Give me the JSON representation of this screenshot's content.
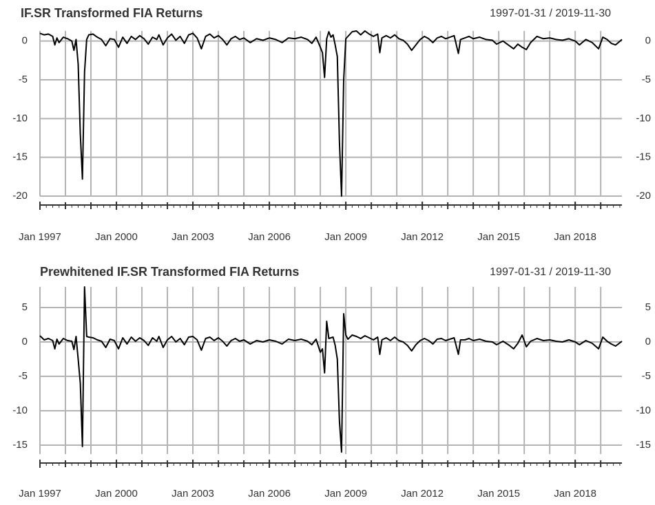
{
  "chart_data": [
    {
      "type": "line",
      "title": "IF.SR Transformed FIA Returns",
      "subtitle": "1997-01-31 / 2019-11-30",
      "x": [
        "1997-01",
        "1997-03",
        "1997-05",
        "1997-07",
        "1997-08",
        "1997-09",
        "1997-10",
        "1997-12",
        "1998-02",
        "1998-04",
        "1998-05",
        "1998-06",
        "1998-07",
        "1998-08",
        "1998-09",
        "1998-10",
        "1998-11",
        "1998-12",
        "1999-02",
        "1999-04",
        "1999-06",
        "1999-08",
        "1999-10",
        "1999-12",
        "2000-02",
        "2000-04",
        "2000-06",
        "2000-08",
        "2000-10",
        "2000-12",
        "2001-02",
        "2001-04",
        "2001-06",
        "2001-08",
        "2001-09",
        "2001-11",
        "2002-01",
        "2002-03",
        "2002-05",
        "2002-07",
        "2002-09",
        "2002-11",
        "2003-01",
        "2003-03",
        "2003-05",
        "2003-07",
        "2003-09",
        "2003-11",
        "2004-01",
        "2004-03",
        "2004-05",
        "2004-07",
        "2004-09",
        "2004-11",
        "2005-01",
        "2005-04",
        "2005-07",
        "2005-10",
        "2006-01",
        "2006-04",
        "2006-07",
        "2006-10",
        "2007-01",
        "2007-04",
        "2007-07",
        "2007-09",
        "2007-11",
        "2008-01",
        "2008-02",
        "2008-03",
        "2008-04",
        "2008-05",
        "2008-06",
        "2008-07",
        "2008-08",
        "2008-09",
        "2008-10",
        "2008-11",
        "2008-12",
        "2009-01",
        "2009-02",
        "2009-04",
        "2009-06",
        "2009-08",
        "2009-10",
        "2009-12",
        "2010-02",
        "2010-04",
        "2010-05",
        "2010-06",
        "2010-08",
        "2010-10",
        "2010-12",
        "2011-02",
        "2011-04",
        "2011-06",
        "2011-08",
        "2011-10",
        "2011-12",
        "2012-02",
        "2012-04",
        "2012-06",
        "2012-08",
        "2012-10",
        "2012-12",
        "2013-02",
        "2013-04",
        "2013-06",
        "2013-07",
        "2013-09",
        "2013-11",
        "2014-01",
        "2014-04",
        "2014-07",
        "2014-10",
        "2014-12",
        "2015-03",
        "2015-06",
        "2015-08",
        "2015-10",
        "2015-12",
        "2016-02",
        "2016-04",
        "2016-07",
        "2016-10",
        "2017-01",
        "2017-04",
        "2017-07",
        "2017-10",
        "2018-01",
        "2018-03",
        "2018-06",
        "2018-09",
        "2018-12",
        "2019-02",
        "2019-04",
        "2019-06",
        "2019-08",
        "2019-11"
      ],
      "values": [
        1.0,
        0.8,
        0.9,
        0.6,
        -0.5,
        0.4,
        -0.2,
        0.5,
        0.3,
        0.0,
        -1.2,
        0.2,
        -3.0,
        -12.0,
        -17.8,
        -4.0,
        0.2,
        0.8,
        0.9,
        0.5,
        0.2,
        -0.6,
        0.3,
        0.2,
        -0.8,
        0.5,
        -0.3,
        0.6,
        0.2,
        0.7,
        0.3,
        -0.4,
        0.5,
        0.2,
        0.8,
        -0.5,
        0.4,
        0.9,
        0.1,
        0.6,
        -0.3,
        0.8,
        1.0,
        0.4,
        -1.0,
        0.6,
        0.9,
        0.4,
        0.7,
        0.2,
        -0.5,
        0.3,
        0.6,
        0.2,
        0.4,
        -0.2,
        0.3,
        0.1,
        0.4,
        0.2,
        -0.2,
        0.4,
        0.3,
        0.5,
        0.2,
        -0.3,
        0.5,
        -0.8,
        -1.5,
        -4.7,
        0.3,
        1.2,
        0.5,
        0.8,
        -0.5,
        -2.0,
        -13.0,
        -20.0,
        -5.0,
        0.3,
        0.6,
        1.2,
        1.3,
        0.8,
        1.3,
        0.9,
        0.6,
        0.9,
        -1.5,
        0.4,
        0.7,
        0.4,
        0.8,
        0.3,
        0.1,
        -0.4,
        -1.2,
        -0.5,
        0.2,
        0.6,
        0.3,
        -0.2,
        0.4,
        0.6,
        0.3,
        0.5,
        0.7,
        -1.6,
        0.2,
        0.4,
        0.6,
        0.3,
        0.5,
        0.2,
        0.1,
        -0.4,
        0.0,
        -0.6,
        -1.0,
        -0.4,
        -0.8,
        -1.1,
        -0.2,
        0.6,
        0.3,
        0.4,
        0.2,
        0.1,
        0.3,
        0.0,
        -0.5,
        0.2,
        -0.2,
        -1.0,
        0.5,
        0.2,
        -0.3,
        -0.5,
        0.2
      ],
      "color": "#000000",
      "xlim": [
        "1997-01",
        "2019-11"
      ],
      "xticks": [
        {
          "value": "1997-01",
          "label": "Jan 1997"
        },
        {
          "value": "2000-01",
          "label": "Jan 2000"
        },
        {
          "value": "2003-01",
          "label": "Jan 2003"
        },
        {
          "value": "2006-01",
          "label": "Jan 2006"
        },
        {
          "value": "2009-01",
          "label": "Jan 2009"
        },
        {
          "value": "2012-01",
          "label": "Jan 2012"
        },
        {
          "value": "2015-01",
          "label": "Jan 2015"
        },
        {
          "value": "2018-01",
          "label": "Jan 2018"
        }
      ],
      "ylim": [
        -20,
        1.3
      ],
      "yticks": [
        0,
        -5,
        -10,
        -15,
        -20
      ],
      "grid": true
    },
    {
      "type": "line",
      "title": "Prewhitened IF.SR Transformed FIA Returns",
      "subtitle": "1997-01-31 / 2019-11-30",
      "x": [
        "1997-01",
        "1997-03",
        "1997-05",
        "1997-07",
        "1997-08",
        "1997-09",
        "1997-10",
        "1997-12",
        "1998-02",
        "1998-04",
        "1998-05",
        "1998-06",
        "1998-07",
        "1998-08",
        "1998-09",
        "1998-10",
        "1998-11",
        "1998-12",
        "1999-02",
        "1999-04",
        "1999-06",
        "1999-08",
        "1999-10",
        "1999-12",
        "2000-02",
        "2000-04",
        "2000-06",
        "2000-08",
        "2000-10",
        "2000-12",
        "2001-02",
        "2001-04",
        "2001-06",
        "2001-08",
        "2001-09",
        "2001-11",
        "2002-01",
        "2002-03",
        "2002-05",
        "2002-07",
        "2002-09",
        "2002-11",
        "2003-01",
        "2003-03",
        "2003-05",
        "2003-07",
        "2003-09",
        "2003-11",
        "2004-01",
        "2004-03",
        "2004-05",
        "2004-07",
        "2004-09",
        "2004-11",
        "2005-01",
        "2005-04",
        "2005-07",
        "2005-10",
        "2006-01",
        "2006-04",
        "2006-07",
        "2006-10",
        "2007-01",
        "2007-04",
        "2007-07",
        "2007-09",
        "2007-11",
        "2008-01",
        "2008-02",
        "2008-03",
        "2008-04",
        "2008-05",
        "2008-06",
        "2008-07",
        "2008-08",
        "2008-09",
        "2008-10",
        "2008-11",
        "2008-12",
        "2009-01",
        "2009-02",
        "2009-04",
        "2009-06",
        "2009-08",
        "2009-10",
        "2009-12",
        "2010-02",
        "2010-04",
        "2010-05",
        "2010-06",
        "2010-08",
        "2010-10",
        "2010-12",
        "2011-02",
        "2011-04",
        "2011-06",
        "2011-08",
        "2011-10",
        "2011-12",
        "2012-02",
        "2012-04",
        "2012-06",
        "2012-08",
        "2012-10",
        "2012-12",
        "2013-02",
        "2013-04",
        "2013-06",
        "2013-07",
        "2013-09",
        "2013-11",
        "2014-01",
        "2014-04",
        "2014-07",
        "2014-10",
        "2014-12",
        "2015-03",
        "2015-06",
        "2015-08",
        "2015-10",
        "2015-12",
        "2016-02",
        "2016-04",
        "2016-07",
        "2016-10",
        "2017-01",
        "2017-04",
        "2017-07",
        "2017-10",
        "2018-01",
        "2018-03",
        "2018-06",
        "2018-09",
        "2018-12",
        "2019-02",
        "2019-04",
        "2019-06",
        "2019-08",
        "2019-11"
      ],
      "values": [
        0.9,
        0.3,
        0.5,
        0.2,
        -1.0,
        0.4,
        -0.3,
        0.5,
        0.2,
        0.1,
        -1.1,
        0.8,
        -2.5,
        -6.0,
        -15.2,
        8.0,
        0.8,
        0.7,
        0.6,
        0.3,
        0.1,
        -0.8,
        0.4,
        0.2,
        -1.0,
        0.6,
        -0.3,
        0.7,
        0.1,
        0.6,
        0.2,
        -0.5,
        0.6,
        0.1,
        0.8,
        -0.8,
        0.3,
        0.8,
        0.0,
        0.5,
        -0.4,
        0.7,
        0.8,
        0.3,
        -1.2,
        0.5,
        0.7,
        0.2,
        0.6,
        0.1,
        -0.6,
        0.2,
        0.5,
        0.1,
        0.3,
        -0.3,
        0.2,
        0.0,
        0.3,
        0.1,
        -0.3,
        0.4,
        0.2,
        0.4,
        0.1,
        -0.4,
        0.4,
        -1.5,
        -1.0,
        -4.5,
        3.0,
        0.5,
        0.6,
        0.7,
        -0.5,
        -2.5,
        -11.5,
        -16.0,
        4.1,
        1.0,
        0.4,
        1.0,
        0.8,
        0.5,
        0.9,
        0.6,
        0.3,
        0.7,
        -1.8,
        0.3,
        0.6,
        0.2,
        0.7,
        0.2,
        0.0,
        -0.5,
        -1.3,
        -0.4,
        0.2,
        0.5,
        0.2,
        -0.3,
        0.4,
        0.5,
        0.2,
        0.4,
        0.6,
        -1.8,
        0.3,
        0.3,
        0.5,
        0.2,
        0.4,
        0.1,
        0.0,
        -0.4,
        0.1,
        -0.5,
        -1.0,
        -0.2,
        1.0,
        -0.7,
        0.1,
        0.5,
        0.2,
        0.3,
        0.1,
        0.0,
        0.3,
        0.0,
        -0.4,
        0.2,
        -0.2,
        -1.0,
        0.7,
        0.1,
        -0.3,
        -0.6,
        0.1
      ],
      "color": "#000000",
      "xlim": [
        "1997-01",
        "2019-11"
      ],
      "xticks": [
        {
          "value": "1997-01",
          "label": "Jan 1997"
        },
        {
          "value": "2000-01",
          "label": "Jan 2000"
        },
        {
          "value": "2003-01",
          "label": "Jan 2003"
        },
        {
          "value": "2006-01",
          "label": "Jan 2006"
        },
        {
          "value": "2009-01",
          "label": "Jan 2009"
        },
        {
          "value": "2012-01",
          "label": "Jan 2012"
        },
        {
          "value": "2015-01",
          "label": "Jan 2015"
        },
        {
          "value": "2018-01",
          "label": "Jan 2018"
        }
      ],
      "ylim": [
        -16.3,
        8
      ],
      "yticks": [
        5,
        0,
        -5,
        -10,
        -15
      ],
      "grid": true
    }
  ]
}
